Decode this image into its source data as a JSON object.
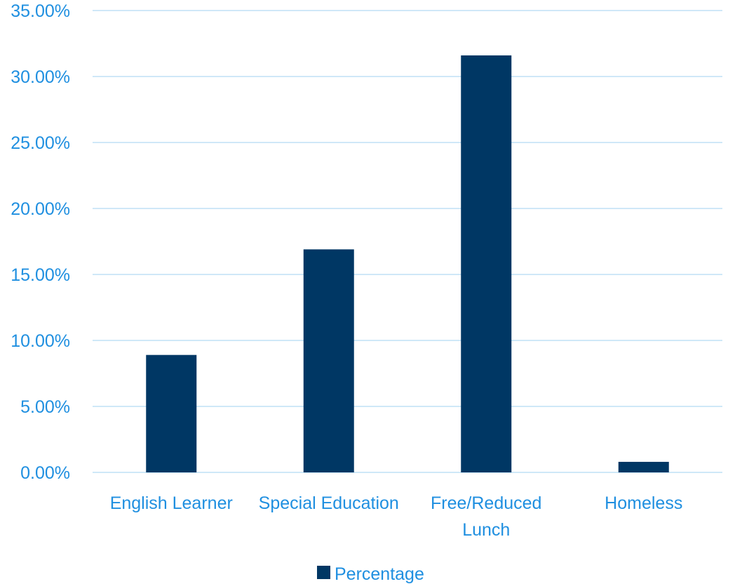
{
  "chart_data": {
    "type": "bar",
    "categories": [
      [
        "English Learner"
      ],
      [
        "Special Education"
      ],
      [
        "Free/Reduced",
        "Lunch"
      ],
      [
        "Homeless"
      ]
    ],
    "series": [
      {
        "name": "Percentage",
        "values": [
          8.9,
          16.9,
          31.6,
          0.8
        ]
      }
    ],
    "ylim": [
      0,
      35
    ],
    "yticks": [
      "0.00%",
      "5.00%",
      "10.00%",
      "15.00%",
      "20.00%",
      "25.00%",
      "30.00%",
      "35.00%"
    ],
    "grid": true,
    "legend_position": "bottom",
    "colors": {
      "bar": "#003764",
      "grid": "#bfe0f6",
      "text": "#1f8fe0"
    }
  }
}
